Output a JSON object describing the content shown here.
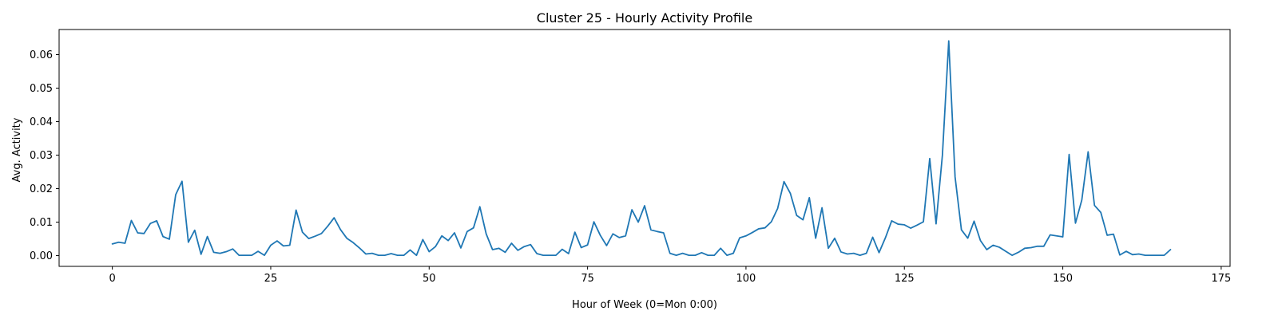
{
  "chart_data": {
    "type": "line",
    "title": "Cluster 25 - Hourly Activity Profile",
    "xlabel": "Hour of Week (0=Mon 0:00)",
    "ylabel": "Avg. Activity",
    "xlim": [
      -8.4,
      176.4
    ],
    "ylim": [
      -0.0032,
      0.0675
    ],
    "xticks": [
      {
        "value": 0,
        "label": "0"
      },
      {
        "value": 25,
        "label": "25"
      },
      {
        "value": 50,
        "label": "50"
      },
      {
        "value": 75,
        "label": "75"
      },
      {
        "value": 100,
        "label": "100"
      },
      {
        "value": 125,
        "label": "125"
      },
      {
        "value": 150,
        "label": "150"
      },
      {
        "value": 175,
        "label": "175"
      }
    ],
    "yticks": [
      {
        "value": 0.0,
        "label": "0.00"
      },
      {
        "value": 0.01,
        "label": "0.01"
      },
      {
        "value": 0.02,
        "label": "0.02"
      },
      {
        "value": 0.03,
        "label": "0.03"
      },
      {
        "value": 0.04,
        "label": "0.04"
      },
      {
        "value": 0.05,
        "label": "0.05"
      },
      {
        "value": 0.06,
        "label": "0.06"
      }
    ],
    "grid": false,
    "colors": {
      "series": "#1f77b4",
      "axes": "#000000",
      "background": "#ffffff"
    },
    "series": [
      {
        "name": "",
        "values": [
          0.0035,
          0.004,
          0.0037,
          0.0105,
          0.0068,
          0.0066,
          0.0096,
          0.0104,
          0.0057,
          0.0049,
          0.0182,
          0.0222,
          0.004,
          0.0076,
          0.0004,
          0.0057,
          0.001,
          0.0007,
          0.0012,
          0.002,
          0.0001,
          0.0001,
          0.0001,
          0.0013,
          0.0001,
          0.0031,
          0.0044,
          0.0029,
          0.0031,
          0.0136,
          0.007,
          0.0051,
          0.0058,
          0.0066,
          0.0088,
          0.0113,
          0.0078,
          0.0052,
          0.0039,
          0.0023,
          0.0005,
          0.0007,
          0.0001,
          0.0001,
          0.0006,
          0.0001,
          0.0001,
          0.0017,
          0.0001,
          0.0048,
          0.0012,
          0.0027,
          0.0059,
          0.0045,
          0.0068,
          0.0023,
          0.0072,
          0.0083,
          0.0146,
          0.0065,
          0.0018,
          0.0022,
          0.001,
          0.0037,
          0.0016,
          0.0027,
          0.0033,
          0.0006,
          0.0001,
          0.0001,
          0.0001,
          0.0019,
          0.0006,
          0.007,
          0.0024,
          0.0032,
          0.0101,
          0.0061,
          0.003,
          0.0065,
          0.0054,
          0.0059,
          0.0137,
          0.01,
          0.0149,
          0.0077,
          0.0072,
          0.0068,
          0.0007,
          0.0001,
          0.0007,
          0.0001,
          0.0001,
          0.0009,
          0.0001,
          0.0001,
          0.0022,
          0.0001,
          0.0007,
          0.0053,
          0.0059,
          0.0069,
          0.008,
          0.0083,
          0.0101,
          0.0141,
          0.0221,
          0.0186,
          0.012,
          0.0107,
          0.0173,
          0.0052,
          0.0143,
          0.0022,
          0.0052,
          0.0011,
          0.0005,
          0.0007,
          0.0001,
          0.0007,
          0.0055,
          0.0009,
          0.0053,
          0.0104,
          0.0094,
          0.0092,
          0.0082,
          0.0091,
          0.0101,
          0.029,
          0.0095,
          0.03,
          0.0641,
          0.0235,
          0.0077,
          0.0052,
          0.0103,
          0.0045,
          0.0018,
          0.0031,
          0.0025,
          0.0013,
          0.0001,
          0.001,
          0.0022,
          0.0024,
          0.0028,
          0.0028,
          0.0062,
          0.0059,
          0.0056,
          0.0302,
          0.0097,
          0.0166,
          0.031,
          0.015,
          0.0129,
          0.0061,
          0.0064,
          0.0002,
          0.0013,
          0.0003,
          0.0005,
          0.0001,
          0.0001,
          0.0001,
          0.0001,
          0.0018
        ]
      }
    ]
  }
}
